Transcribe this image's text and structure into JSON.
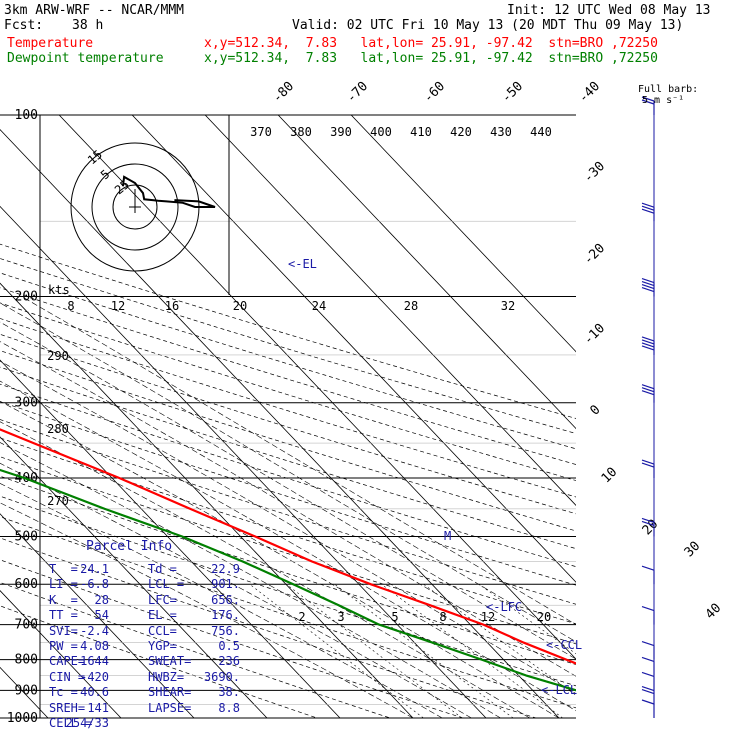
{
  "header": {
    "model": "3km ARW-WRF -- NCAR/MMM",
    "init": "Init: 12 UTC Wed 08 May 13",
    "fcst_label": "Fcst:",
    "fcst_value": "38 h",
    "valid": "Valid: 02 UTC Fri 10 May 13 (20 MDT Thu 09 May 13)",
    "temp_label": "Temperature",
    "temp_loc": "x,y=512.34,  7.83   lat,lon= 25.91, -97.42  stn=BRO ,72250",
    "dew_label": "Dewpoint temperature",
    "dew_loc": "x,y=512.34,  7.83   lat,lon= 25.91, -97.42  stn=BRO ,72250"
  },
  "colors": {
    "temperature": "#ff0000",
    "dewpoint": "#008000",
    "parcel_text": "#1a1aa6",
    "wind_barbs": "#1a1aa6",
    "isobars": "#000000"
  },
  "barb_legend": {
    "title": "Full barb:",
    "value": "5 m s⁻¹"
  },
  "hodograph": {
    "units": "kts",
    "ring_labels": [
      "15",
      "5",
      "25"
    ]
  },
  "parcel_info": {
    "title": "Parcel Info",
    "rows": [
      [
        "T  =",
        "24.1",
        "Td =",
        "22.9"
      ],
      [
        "LI =",
        "-6.8",
        "LCL =",
        "901."
      ],
      [
        "K  =",
        "28",
        "LFC=",
        "656."
      ],
      [
        "TT =",
        "54",
        "EL =",
        "176."
      ],
      [
        "SVI=",
        "-2.4",
        "CCL=",
        "756."
      ],
      [
        "PW =",
        "4.08",
        "YGP=",
        "0.5"
      ],
      [
        "CAPE=",
        "1644",
        "SWEAT=",
        "236"
      ],
      [
        "CIN =",
        "-420",
        "HWBZ=",
        "3690."
      ],
      [
        "Tc =",
        "40.6",
        "SHEAR=",
        "38."
      ],
      [
        "SREH=",
        "141",
        "LAPSE=",
        "8.8"
      ],
      [
        "CELL =",
        "254/33",
        "",
        ""
      ]
    ]
  },
  "chart_data": {
    "type": "skew-t",
    "pressure_levels_hpa": [
      100,
      200,
      300,
      400,
      500,
      600,
      700,
      800,
      900,
      1000
    ],
    "isotherm_labels_c": [
      -80,
      -70,
      -60,
      -50,
      -40,
      -30,
      -20,
      -10,
      0,
      10,
      20,
      30,
      40
    ],
    "theta_e_labels_k": [
      370,
      380,
      390,
      400,
      410,
      420,
      430,
      440
    ],
    "mixing_ratio_labels_gkg": [
      2,
      3,
      5,
      8,
      12,
      20
    ],
    "upper_mixing_labels": [
      8,
      12,
      16,
      20,
      24,
      28,
      32
    ],
    "dry_adiabat_labels": [
      290,
      280,
      270
    ],
    "markers": [
      {
        "label": "<-EL",
        "p": 176
      },
      {
        "label": "<-LFC",
        "p": 656
      },
      {
        "label": "<-CCL",
        "p": 756
      },
      {
        "label": "<-LCL",
        "p": 901
      },
      {
        "label": "M",
        "p": 500
      }
    ],
    "temperature": [
      {
        "p": 1000,
        "t": 24.1
      },
      {
        "p": 975,
        "t": 27.5
      },
      {
        "p": 950,
        "t": 28.0
      },
      {
        "p": 900,
        "t": 25.6
      },
      {
        "p": 850,
        "t": 22.0
      },
      {
        "p": 800,
        "t": 18.6
      },
      {
        "p": 750,
        "t": 15.0
      },
      {
        "p": 700,
        "t": 11.8
      },
      {
        "p": 650,
        "t": 7.0
      },
      {
        "p": 600,
        "t": 1.6
      },
      {
        "p": 550,
        "t": -3.5
      },
      {
        "p": 500,
        "t": -8.0
      },
      {
        "p": 450,
        "t": -13.3
      },
      {
        "p": 400,
        "t": -19.0
      },
      {
        "p": 350,
        "t": -26.2
      },
      {
        "p": 300,
        "t": -34.5
      },
      {
        "p": 250,
        "t": -43.5
      },
      {
        "p": 200,
        "t": -54.0
      },
      {
        "p": 176,
        "t": -61.0
      },
      {
        "p": 150,
        "t": -70.0
      },
      {
        "p": 125,
        "t": -70.0
      },
      {
        "p": 100,
        "t": -71.0
      }
    ],
    "dewpoint": [
      {
        "p": 1000,
        "t": 22.9
      },
      {
        "p": 975,
        "t": 21.0
      },
      {
        "p": 950,
        "t": 19.0
      },
      {
        "p": 900,
        "t": 16.0
      },
      {
        "p": 850,
        "t": 11.0
      },
      {
        "p": 800,
        "t": 7.0
      },
      {
        "p": 750,
        "t": 2.5
      },
      {
        "p": 700,
        "t": -2.5
      },
      {
        "p": 650,
        "t": -5.5
      },
      {
        "p": 600,
        "t": -9.0
      },
      {
        "p": 550,
        "t": -13.0
      },
      {
        "p": 500,
        "t": -18.0
      },
      {
        "p": 450,
        "t": -25.0
      },
      {
        "p": 400,
        "t": -32.0
      },
      {
        "p": 350,
        "t": -42.0
      },
      {
        "p": 300,
        "t": -60.0
      },
      {
        "p": 275,
        "t": -60.0
      },
      {
        "p": 250,
        "t": -62.0
      },
      {
        "p": 225,
        "t": -70.0
      },
      {
        "p": 200,
        "t": -77.0
      },
      {
        "p": 175,
        "t": -88.0
      },
      {
        "p": 150,
        "t": -92.0
      },
      {
        "p": 125,
        "t": -88.0
      },
      {
        "p": 100,
        "t": -85.0
      }
    ],
    "wind": [
      {
        "p": 1000,
        "dir": 150,
        "spd": 6
      },
      {
        "p": 950,
        "dir": 160,
        "spd": 8
      },
      {
        "p": 900,
        "dir": 180,
        "spd": 6
      },
      {
        "p": 850,
        "dir": 210,
        "spd": 4
      },
      {
        "p": 800,
        "dir": 230,
        "spd": 3
      },
      {
        "p": 700,
        "dir": 250,
        "spd": 5
      },
      {
        "p": 600,
        "dir": 255,
        "spd": 6
      },
      {
        "p": 500,
        "dir": 260,
        "spd": 8
      },
      {
        "p": 400,
        "dir": 265,
        "spd": 12
      },
      {
        "p": 300,
        "dir": 270,
        "spd": 15
      },
      {
        "p": 250,
        "dir": 270,
        "spd": 18
      },
      {
        "p": 200,
        "dir": 270,
        "spd": 20
      },
      {
        "p": 150,
        "dir": 265,
        "spd": 16
      },
      {
        "p": 100,
        "dir": 260,
        "spd": 10
      }
    ]
  }
}
